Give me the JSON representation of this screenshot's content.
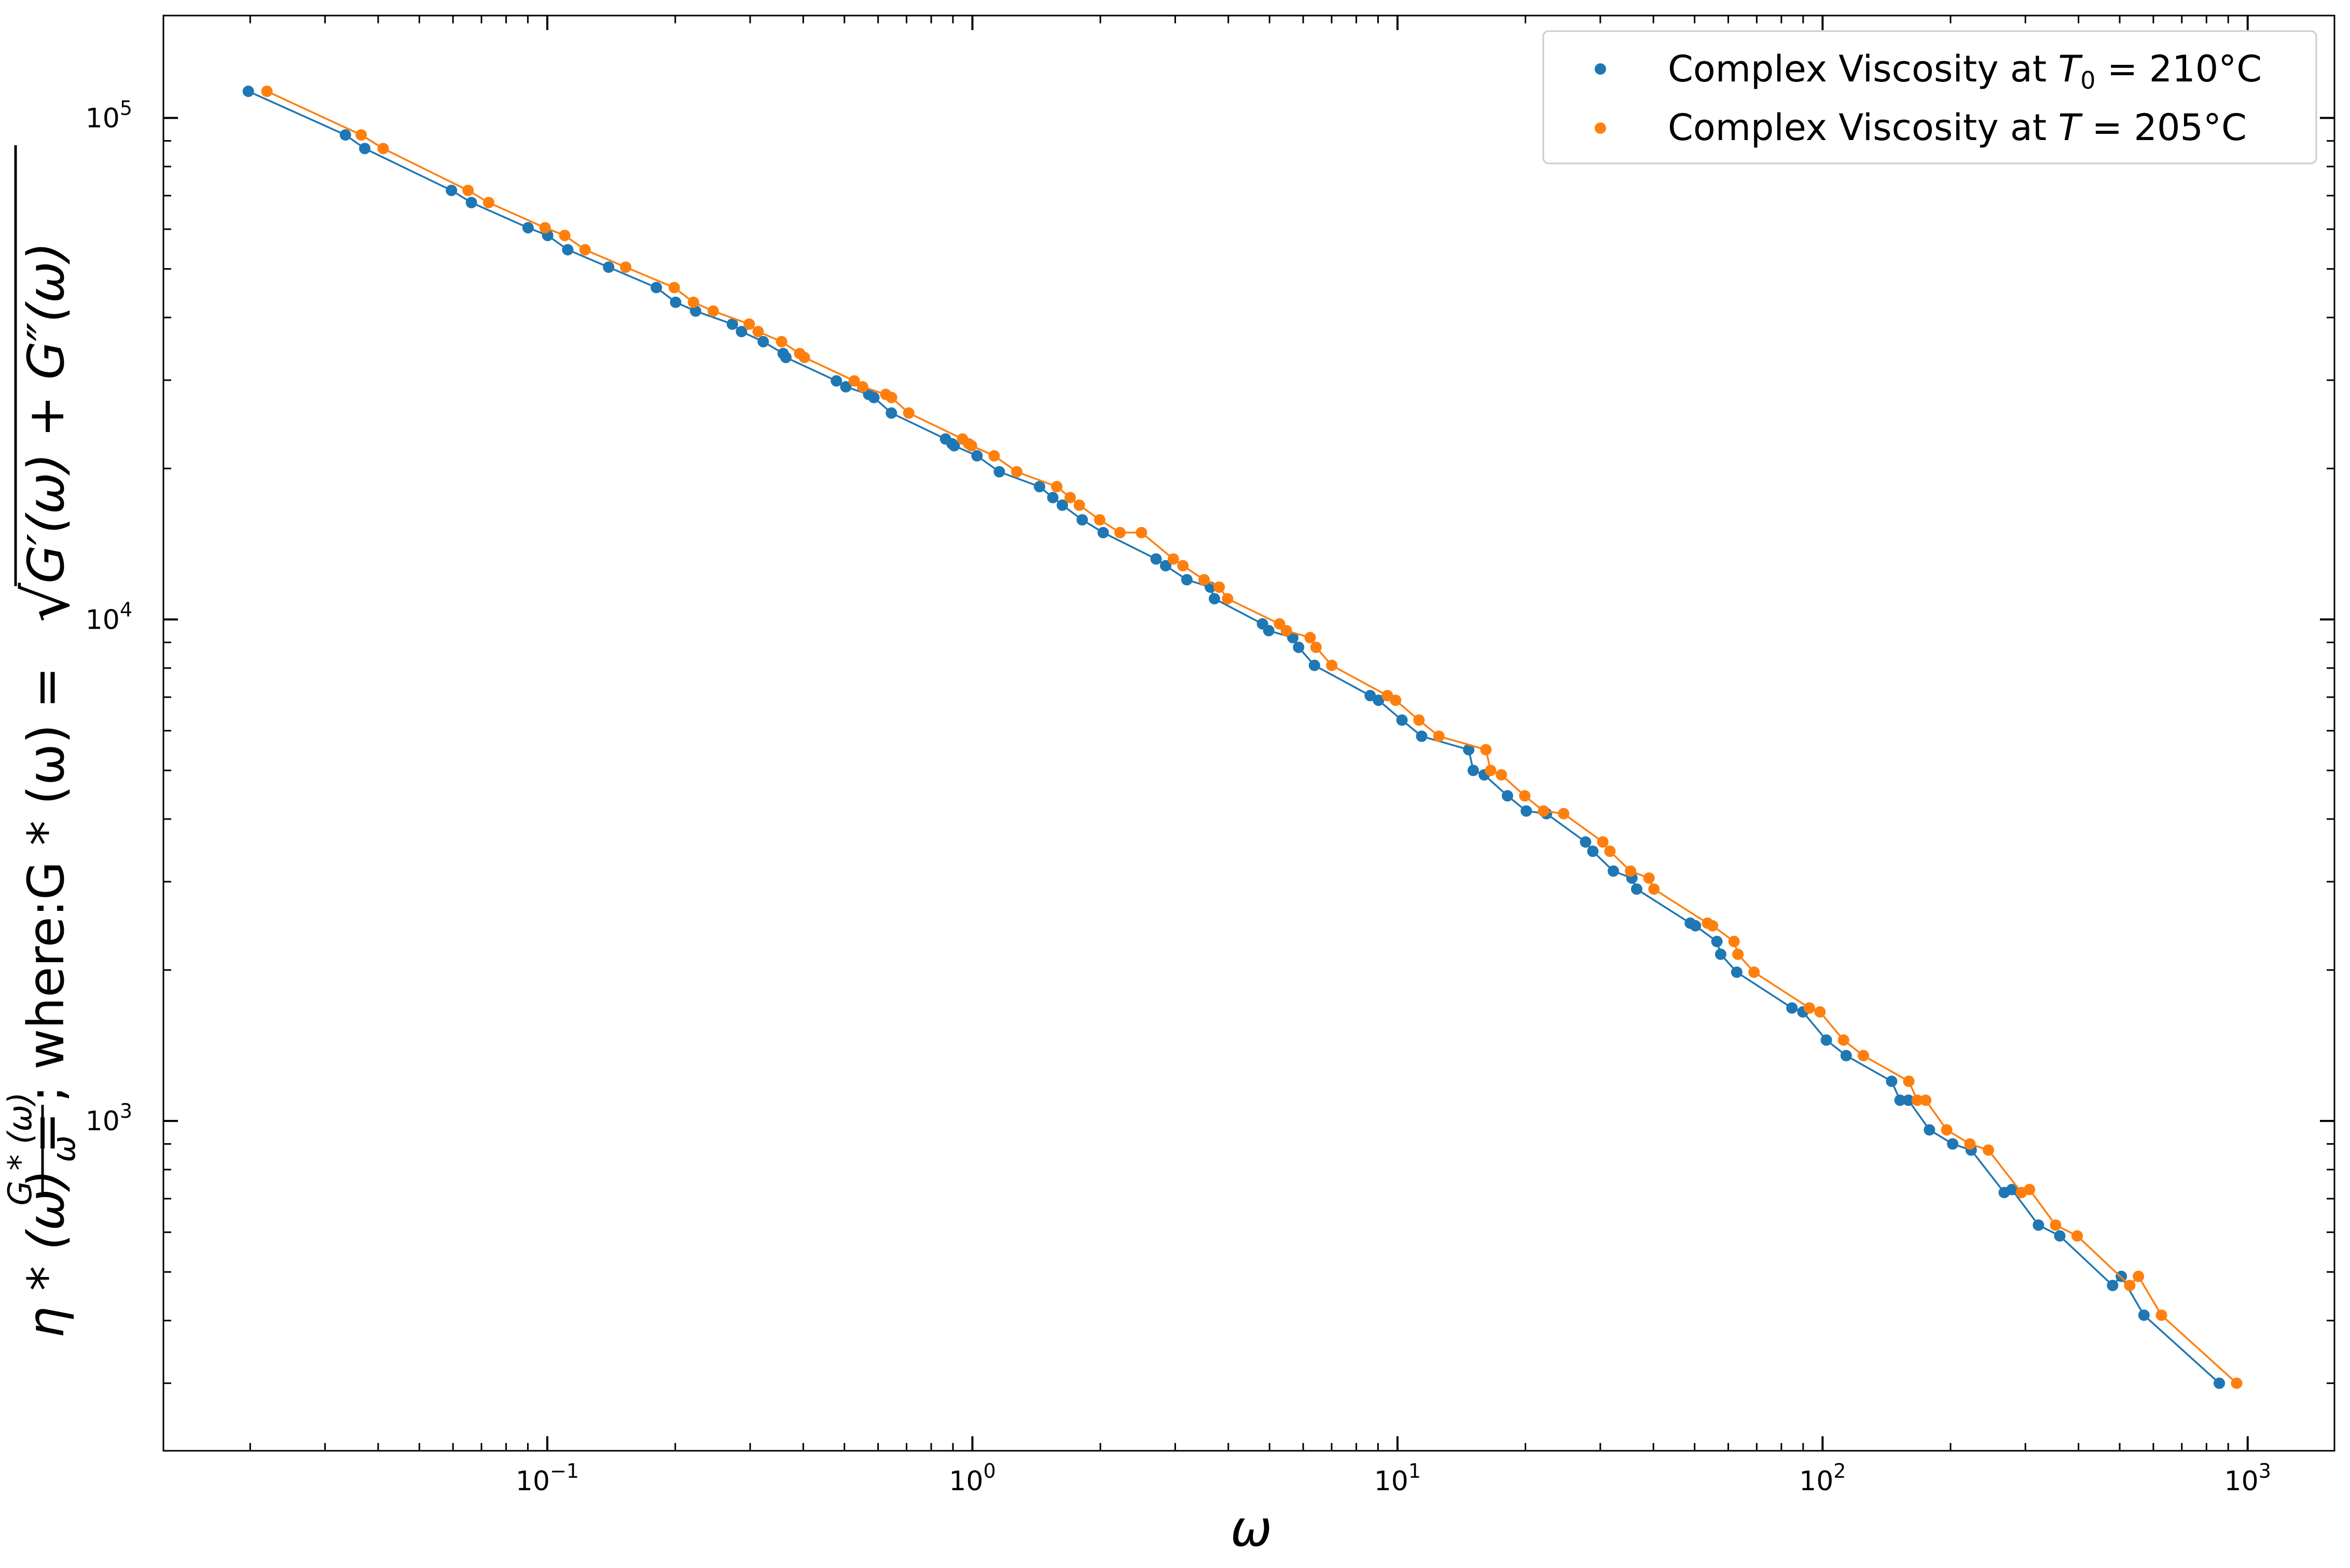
{
  "chart_data": {
    "type": "scatter",
    "xscale": "log",
    "yscale": "log",
    "xlim": [
      0.0125,
      1600
    ],
    "ylim": [
      220,
      160000
    ],
    "xticks": [
      {
        "value": 0.1,
        "base": "10",
        "exp": "−1"
      },
      {
        "value": 1,
        "base": "10",
        "exp": "0"
      },
      {
        "value": 10,
        "base": "10",
        "exp": "1"
      },
      {
        "value": 100,
        "base": "10",
        "exp": "2"
      },
      {
        "value": 1000,
        "base": "10",
        "exp": "3"
      }
    ],
    "yticks": [
      {
        "value": 1000,
        "base": "10",
        "exp": "3"
      },
      {
        "value": 10000,
        "base": "10",
        "exp": "4"
      },
      {
        "value": 100000,
        "base": "10",
        "exp": "5"
      }
    ],
    "xlabel": "ω",
    "ylabel": "η*(ω) = G*(ω)/ω; where:G*(ω) = √(G′(ω) + G″(ω))",
    "ylabel_parts": {
      "eta": "η * (ω) = ",
      "frac_num": "G * (ω)",
      "frac_den": "ω",
      "where": "; where:G * (ω) = ",
      "sqrt_sym": "√",
      "radicand": "G′(ω) + G″(ω)"
    },
    "legend_position": "top-right",
    "grid": false,
    "series": [
      {
        "name": "Complex Viscosity at T₀ = 210°C",
        "legend": {
          "prefix": "Complex Viscosity at ",
          "var": "T",
          "sub": "0",
          "suffix": " = 210°C"
        },
        "color": "#1f77b4",
        "x": [
          0.0198,
          0.0335,
          0.0372,
          0.0595,
          0.0663,
          0.0901,
          0.1002,
          0.1117,
          0.1394,
          0.1805,
          0.2004,
          0.2233,
          0.2725,
          0.2863,
          0.3221,
          0.3588,
          0.3641,
          0.4787,
          0.5038,
          0.5703,
          0.5866,
          0.6448,
          0.8646,
          0.8957,
          0.9061,
          1.0253,
          1.1571,
          1.4387,
          1.5458,
          1.6276,
          1.8129,
          2.0308,
          2.7045,
          2.8487,
          3.1955,
          3.6287,
          3.7102,
          4.8125,
          4.979,
          5.6722,
          5.8534,
          6.3775,
          8.6254,
          9.0237,
          10.2458,
          11.3982,
          14.7077,
          15.0745,
          15.9966,
          18.1434,
          20.0917,
          22.4138,
          27.7026,
          28.8095,
          32.1978,
          35.5987,
          36.5306,
          48.8358,
          50.225,
          56.4155,
          57.5883,
          62.8216,
          84.7106,
          89.8924,
          102.0658,
          113.6287,
          145.3637,
          152.1405,
          159.1891,
          178.4216,
          202.3215,
          223.6484,
          267.5224,
          278.8006,
          321.9716,
          361.4364,
          481.2108,
          504.3233,
          570.2269,
          857.6022
        ],
        "y": [
          113000,
          92500,
          86900,
          71700,
          67800,
          60400,
          58300,
          54600,
          50400,
          45900,
          42900,
          41200,
          38800,
          37500,
          35800,
          33900,
          33300,
          29900,
          29100,
          28100,
          27700,
          25800,
          22900,
          22400,
          22200,
          21200,
          19700,
          18400,
          17500,
          16900,
          15800,
          14900,
          13200,
          12800,
          12000,
          11600,
          11000,
          9800,
          9500,
          9200,
          8800,
          8100,
          7050,
          6900,
          6300,
          5850,
          5500,
          5000,
          4900,
          4450,
          4150,
          4100,
          3600,
          3450,
          3150,
          3050,
          2900,
          2480,
          2450,
          2280,
          2150,
          1980,
          1680,
          1650,
          1450,
          1350,
          1200,
          1100,
          1100,
          960,
          900,
          875,
          720,
          730,
          620,
          590,
          470,
          490,
          410,
          300
        ]
      },
      {
        "name": "Complex Viscosity at T = 205°C",
        "legend": {
          "prefix": "Complex Viscosity at ",
          "var": "T",
          "sub": "",
          "suffix": " = 205°C"
        },
        "color": "#ff7f0e",
        "x": [
          0.0219,
          0.0365,
          0.0411,
          0.0651,
          0.0728,
          0.0988,
          0.1099,
          0.1227,
          0.1529,
          0.1989,
          0.2207,
          0.2457,
          0.2985,
          0.3133,
          0.3558,
          0.3924,
          0.4025,
          0.5273,
          0.5518,
          0.6255,
          0.6454,
          0.7085,
          0.9478,
          0.9801,
          0.9952,
          1.1253,
          1.2716,
          1.5792,
          1.6983,
          1.7846,
          1.9929,
          2.2245,
          2.4983,
          2.9698,
          3.1277,
          3.5081,
          3.8066,
          3.9833,
          5.2761,
          5.4769,
          6.2304,
          6.4317,
          7.0033,
          9.4667,
          9.8978,
          11.2356,
          12.5117,
          16.1428,
          16.5613,
          17.5572,
          19.9213,
          22.0556,
          24.5932,
          30.4156,
          31.6073,
          35.3357,
          39.0533,
          40.1098,
          53.6093,
          55.1012,
          61.9145,
          63.2163,
          69.0049,
          93.1139,
          98.6092,
          112.0267,
          124.7573,
          159.5113,
          166.9839,
          174.8141,
          195.8929,
          222.1418,
          245.5317,
          293.6859,
          306.7154,
          353.2898,
          397.2073,
          527.9585,
          553.4024,
          626.9479,
          942.1013
        ],
        "y": [
          113000,
          92500,
          86900,
          71700,
          67800,
          60400,
          58300,
          54600,
          50400,
          45900,
          42900,
          41200,
          38800,
          37500,
          35800,
          33900,
          33300,
          29900,
          29100,
          28100,
          27700,
          25800,
          22900,
          22400,
          22200,
          21200,
          19700,
          18400,
          17500,
          16900,
          15800,
          14900,
          14900,
          13200,
          12800,
          12000,
          11600,
          11000,
          9800,
          9500,
          9200,
          8800,
          8100,
          7050,
          6900,
          6300,
          5850,
          5500,
          5000,
          4900,
          4450,
          4150,
          4100,
          3600,
          3450,
          3150,
          3050,
          2900,
          2480,
          2450,
          2280,
          2150,
          1980,
          1680,
          1650,
          1450,
          1350,
          1200,
          1100,
          1100,
          960,
          900,
          875,
          720,
          730,
          620,
          590,
          470,
          490,
          410,
          300
        ]
      }
    ]
  }
}
